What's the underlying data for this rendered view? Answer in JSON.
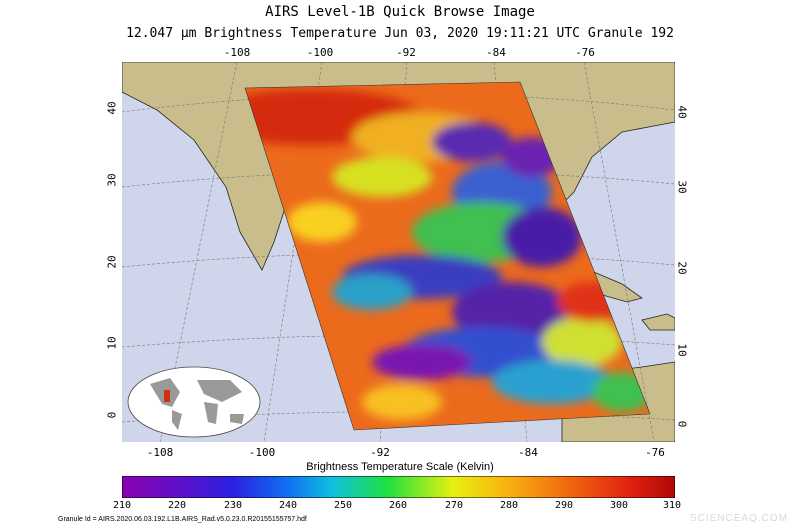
{
  "title_line1": "AIRS Level-1B Quick Browse Image",
  "title_line2": "12.047 µm Brightness Temperature    Jun 03, 2020 19:11:21 UTC   Granule 192",
  "lon_ticks_top": [
    "-108",
    "-100",
    "-92",
    "-84",
    "-76"
  ],
  "lon_ticks_bottom": [
    "-108",
    "-100",
    "-92",
    "-84",
    "-76"
  ],
  "lat_ticks_left": [
    "40",
    "30",
    "20",
    "10",
    "0"
  ],
  "lat_ticks_right": [
    "40",
    "30",
    "20",
    "10",
    "0"
  ],
  "scale_title": "Brightness Temperature Scale (Kelvin)",
  "scale_ticks": [
    "210",
    "220",
    "230",
    "240",
    "250",
    "260",
    "270",
    "280",
    "290",
    "300",
    "310"
  ],
  "scale_range": [
    210,
    310
  ],
  "granule_id": "Granule Id = AIRS.2020.06.03.192.L1B.AIRS_Rad.v5.0.23.0.R20155155757.hdf",
  "watermark": "SCIENCEAQ.COM",
  "colors": {
    "ocean": "#cfd5ea",
    "land": "#c9bd8c",
    "swath_warm": "#e85a18",
    "swath_cold": "#4a1fa8"
  }
}
